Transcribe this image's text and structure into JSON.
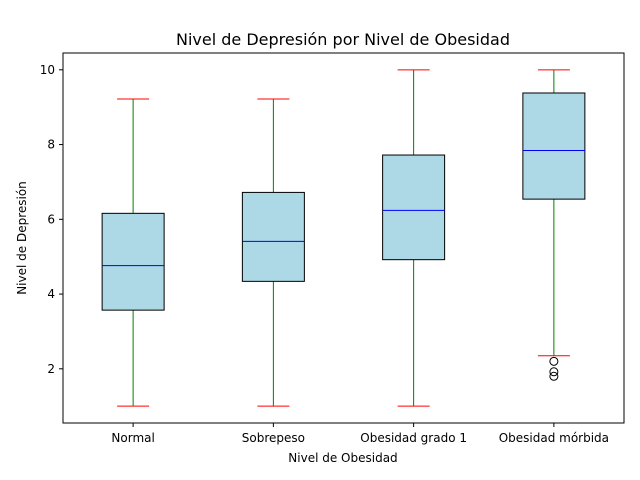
{
  "chart_data": {
    "type": "boxplot",
    "title": "Nivel de Depresión por Nivel de Obesidad",
    "xlabel": "Nivel de Obesidad",
    "ylabel": "Nivel de Depresión",
    "ylim": [
      0.55,
      10.45
    ],
    "yticks": [
      2,
      4,
      6,
      8,
      10
    ],
    "grid": false,
    "colors": {
      "box_fill": "#add8e6",
      "box_edge": "#000000",
      "median": "#0000ff",
      "whisker": "#008000",
      "cap": "#ff0000",
      "flier": "#000000"
    },
    "categories": [
      "Normal",
      "Sobrepeso",
      "Obesidad grado 1",
      "Obesidad mórbida"
    ],
    "boxes": [
      {
        "whislo": 1.0,
        "q1": 3.57,
        "med": 4.76,
        "q3": 6.16,
        "whishi": 9.22,
        "fliers": []
      },
      {
        "whislo": 1.0,
        "q1": 4.34,
        "med": 5.41,
        "q3": 6.72,
        "whishi": 9.22,
        "fliers": []
      },
      {
        "whislo": 1.0,
        "q1": 4.92,
        "med": 6.24,
        "q3": 7.72,
        "whishi": 10.0,
        "fliers": []
      },
      {
        "whislo": 2.35,
        "q1": 6.54,
        "med": 7.84,
        "q3": 9.38,
        "whishi": 10.0,
        "fliers": [
          2.2,
          1.92,
          1.8
        ]
      }
    ]
  }
}
